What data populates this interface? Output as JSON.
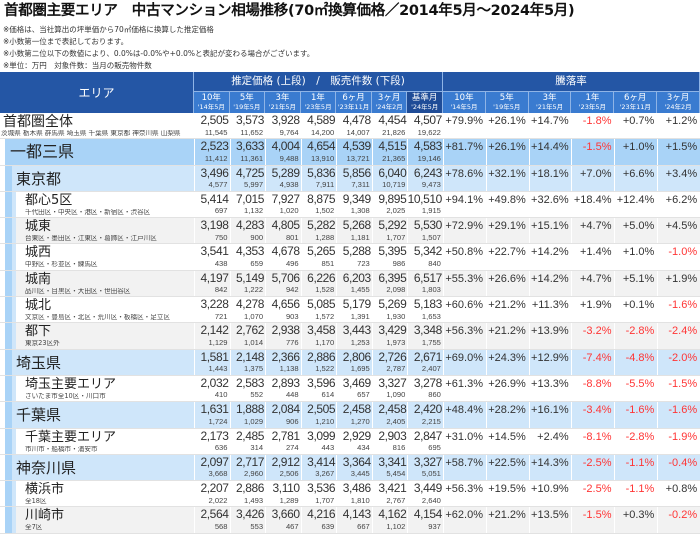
{
  "title": "首都圏主要エリア　中古マンション相場推移(70㎡換算価格／2014年5月～2024年5月)",
  "notes": [
    "※価格は、当社算出の坪単価から70㎡価格に換算した推定価格",
    "※小数第一位まで表記しております。",
    "※小数第二位以下の数値により、0.0%は-0.0%や+0.0%と表記が変わる場合がございます。",
    "※単位：万円　対象件数：当月の販売物件数"
  ],
  "header": {
    "area": "エリア",
    "price_group": "推定価格 (上段)　/　販売件数 (下段)",
    "rate_group": "騰落率",
    "price_cols": [
      {
        "label": "10年",
        "date": "'14年5月"
      },
      {
        "label": "5年",
        "date": "'19年5月"
      },
      {
        "label": "3年",
        "date": "'21年5月"
      },
      {
        "label": "1年",
        "date": "'23年5月"
      },
      {
        "label": "6ヶ月",
        "date": "'23年11月"
      },
      {
        "label": "3ヶ月",
        "date": "'24年2月"
      },
      {
        "label": "基準月",
        "date": "'24年5月"
      }
    ],
    "rate_cols": [
      {
        "label": "10年",
        "date": "'14年5月"
      },
      {
        "label": "5年",
        "date": "'19年5月"
      },
      {
        "label": "3年",
        "date": "'21年5月"
      },
      {
        "label": "1年",
        "date": "'23年5月"
      },
      {
        "label": "6ヶ月",
        "date": "'23年11月"
      },
      {
        "label": "3ヶ月",
        "date": "'24年2月"
      }
    ]
  },
  "colors": {
    "header": "#2456a5",
    "subheader": "#3a7bd0",
    "base_header": "#1f4c97",
    "level1": "#a9d3f7",
    "level2": "#cfe6fa",
    "alt": "#f2f2f2",
    "negative": "#ff3535"
  },
  "rows": [
    {
      "name": "首都圏全体",
      "sub": "茨城県 栃木県 群馬県 埼玉県 千葉県 東京都 神奈川県 山梨県",
      "level": 0,
      "prices": [
        "2,505",
        "3,573",
        "3,928",
        "4,589",
        "4,478",
        "4,454",
        "4,507"
      ],
      "counts": [
        "11,545",
        "11,652",
        "9,764",
        "14,200",
        "14,007",
        "21,826",
        "19,622"
      ],
      "rates": [
        "+79.9%",
        "+26.1%",
        "+14.7%",
        "-1.8%",
        "+0.7%",
        "+1.2%"
      ]
    },
    {
      "name": "一都三県",
      "sub": "",
      "level": 1,
      "prices": [
        "2,523",
        "3,633",
        "4,004",
        "4,654",
        "4,539",
        "4,515",
        "4,583"
      ],
      "counts": [
        "11,412",
        "11,361",
        "9,488",
        "13,910",
        "13,721",
        "21,365",
        "19,146"
      ],
      "rates": [
        "+81.7%",
        "+26.1%",
        "+14.4%",
        "-1.5%",
        "+1.0%",
        "+1.5%"
      ]
    },
    {
      "name": "東京都",
      "sub": "",
      "level": 2,
      "prices": [
        "3,496",
        "4,725",
        "5,289",
        "5,836",
        "5,856",
        "6,040",
        "6,243"
      ],
      "counts": [
        "4,577",
        "5,997",
        "4,938",
        "7,911",
        "7,311",
        "10,719",
        "9,473"
      ],
      "rates": [
        "+78.6%",
        "+32.1%",
        "+18.1%",
        "+7.0%",
        "+6.6%",
        "+3.4%"
      ]
    },
    {
      "name": "都心5区",
      "sub": "千代田区・中央区・港区・新宿区・渋谷区",
      "level": 3,
      "alt": false,
      "prices": [
        "5,414",
        "7,015",
        "7,927",
        "8,875",
        "9,349",
        "9,895",
        "10,510"
      ],
      "counts": [
        "697",
        "1,132",
        "1,020",
        "1,502",
        "1,308",
        "2,025",
        "1,915"
      ],
      "rates": [
        "+94.1%",
        "+49.8%",
        "+32.6%",
        "+18.4%",
        "+12.4%",
        "+6.2%"
      ]
    },
    {
      "name": "城東",
      "sub": "台東区・墨田区・江東区・葛飾区・江戸川区",
      "level": 3,
      "alt": true,
      "prices": [
        "3,198",
        "4,283",
        "4,805",
        "5,282",
        "5,268",
        "5,292",
        "5,530"
      ],
      "counts": [
        "750",
        "900",
        "801",
        "1,288",
        "1,181",
        "1,707",
        "1,507"
      ],
      "rates": [
        "+72.9%",
        "+29.1%",
        "+15.1%",
        "+4.7%",
        "+5.0%",
        "+4.5%"
      ]
    },
    {
      "name": "城西",
      "sub": "中野区・杉並区・練馬区",
      "level": 3,
      "alt": false,
      "prices": [
        "3,541",
        "4,353",
        "4,678",
        "5,265",
        "5,288",
        "5,395",
        "5,342"
      ],
      "counts": [
        "438",
        "659",
        "496",
        "851",
        "723",
        "986",
        "840"
      ],
      "rates": [
        "+50.8%",
        "+22.7%",
        "+14.2%",
        "+1.4%",
        "+1.0%",
        "-1.0%"
      ]
    },
    {
      "name": "城南",
      "sub": "品川区・目黒区・大田区・世田谷区",
      "level": 3,
      "alt": true,
      "prices": [
        "4,197",
        "5,149",
        "5,706",
        "6,226",
        "6,203",
        "6,395",
        "6,517"
      ],
      "counts": [
        "842",
        "1,222",
        "942",
        "1,528",
        "1,455",
        "2,098",
        "1,803"
      ],
      "rates": [
        "+55.3%",
        "+26.6%",
        "+14.2%",
        "+4.7%",
        "+5.1%",
        "+1.9%"
      ]
    },
    {
      "name": "城北",
      "sub": "文京区・豊島区・北区・荒川区・板橋区・足立区",
      "level": 3,
      "alt": false,
      "prices": [
        "3,228",
        "4,278",
        "4,656",
        "5,085",
        "5,179",
        "5,269",
        "5,183"
      ],
      "counts": [
        "721",
        "1,070",
        "903",
        "1,572",
        "1,391",
        "1,930",
        "1,653"
      ],
      "rates": [
        "+60.6%",
        "+21.2%",
        "+11.3%",
        "+1.9%",
        "+0.1%",
        "-1.6%"
      ]
    },
    {
      "name": "都下",
      "sub": "東京23区外",
      "level": 3,
      "alt": true,
      "prices": [
        "2,142",
        "2,762",
        "2,938",
        "3,458",
        "3,443",
        "3,429",
        "3,348"
      ],
      "counts": [
        "1,129",
        "1,014",
        "776",
        "1,170",
        "1,253",
        "1,973",
        "1,755"
      ],
      "rates": [
        "+56.3%",
        "+21.2%",
        "+13.9%",
        "-3.2%",
        "-2.8%",
        "-2.4%"
      ]
    },
    {
      "name": "埼玉県",
      "sub": "",
      "level": 2,
      "prices": [
        "1,581",
        "2,148",
        "2,366",
        "2,886",
        "2,806",
        "2,726",
        "2,671"
      ],
      "counts": [
        "1,443",
        "1,375",
        "1,138",
        "1,522",
        "1,695",
        "2,787",
        "2,407"
      ],
      "rates": [
        "+69.0%",
        "+24.3%",
        "+12.9%",
        "-7.4%",
        "-4.8%",
        "-2.0%"
      ]
    },
    {
      "name": "埼玉主要エリア",
      "sub": "さいたま市全10区・川口市",
      "level": 3,
      "alt": false,
      "prices": [
        "2,032",
        "2,583",
        "2,893",
        "3,596",
        "3,469",
        "3,327",
        "3,278"
      ],
      "counts": [
        "410",
        "552",
        "448",
        "614",
        "657",
        "1,090",
        "860"
      ],
      "rates": [
        "+61.3%",
        "+26.9%",
        "+13.3%",
        "-8.8%",
        "-5.5%",
        "-1.5%"
      ]
    },
    {
      "name": "千葉県",
      "sub": "",
      "level": 2,
      "prices": [
        "1,631",
        "1,888",
        "2,084",
        "2,505",
        "2,458",
        "2,458",
        "2,420"
      ],
      "counts": [
        "1,724",
        "1,029",
        "906",
        "1,210",
        "1,270",
        "2,405",
        "2,215"
      ],
      "rates": [
        "+48.4%",
        "+28.2%",
        "+16.1%",
        "-3.4%",
        "-1.6%",
        "-1.6%"
      ]
    },
    {
      "name": "千葉主要エリア",
      "sub": "市川市・船橋市・浦安市",
      "level": 3,
      "alt": false,
      "prices": [
        "2,173",
        "2,485",
        "2,781",
        "3,099",
        "2,929",
        "2,903",
        "2,847"
      ],
      "counts": [
        "636",
        "314",
        "274",
        "443",
        "434",
        "816",
        "695"
      ],
      "rates": [
        "+31.0%",
        "+14.5%",
        "+2.4%",
        "-8.1%",
        "-2.8%",
        "-1.9%"
      ]
    },
    {
      "name": "神奈川県",
      "sub": "",
      "level": 2,
      "prices": [
        "2,097",
        "2,717",
        "2,912",
        "3,414",
        "3,364",
        "3,341",
        "3,327"
      ],
      "counts": [
        "3,668",
        "2,960",
        "2,506",
        "3,267",
        "3,445",
        "5,454",
        "5,051"
      ],
      "rates": [
        "+58.7%",
        "+22.5%",
        "+14.3%",
        "-2.5%",
        "-1.1%",
        "-0.4%"
      ]
    },
    {
      "name": "横浜市",
      "sub": "全18区",
      "level": 3,
      "alt": false,
      "prices": [
        "2,207",
        "2,886",
        "3,110",
        "3,536",
        "3,486",
        "3,421",
        "3,449"
      ],
      "counts": [
        "2,022",
        "1,493",
        "1,289",
        "1,707",
        "1,810",
        "2,767",
        "2,640"
      ],
      "rates": [
        "+56.3%",
        "+19.5%",
        "+10.9%",
        "-2.5%",
        "-1.1%",
        "+0.8%"
      ]
    },
    {
      "name": "川崎市",
      "sub": "全7区",
      "level": 3,
      "alt": true,
      "prices": [
        "2,564",
        "3,426",
        "3,660",
        "4,216",
        "4,143",
        "4,162",
        "4,154"
      ],
      "counts": [
        "568",
        "553",
        "467",
        "639",
        "667",
        "1,102",
        "937"
      ],
      "rates": [
        "+62.0%",
        "+21.2%",
        "+13.5%",
        "-1.5%",
        "+0.3%",
        "-0.2%"
      ]
    }
  ]
}
